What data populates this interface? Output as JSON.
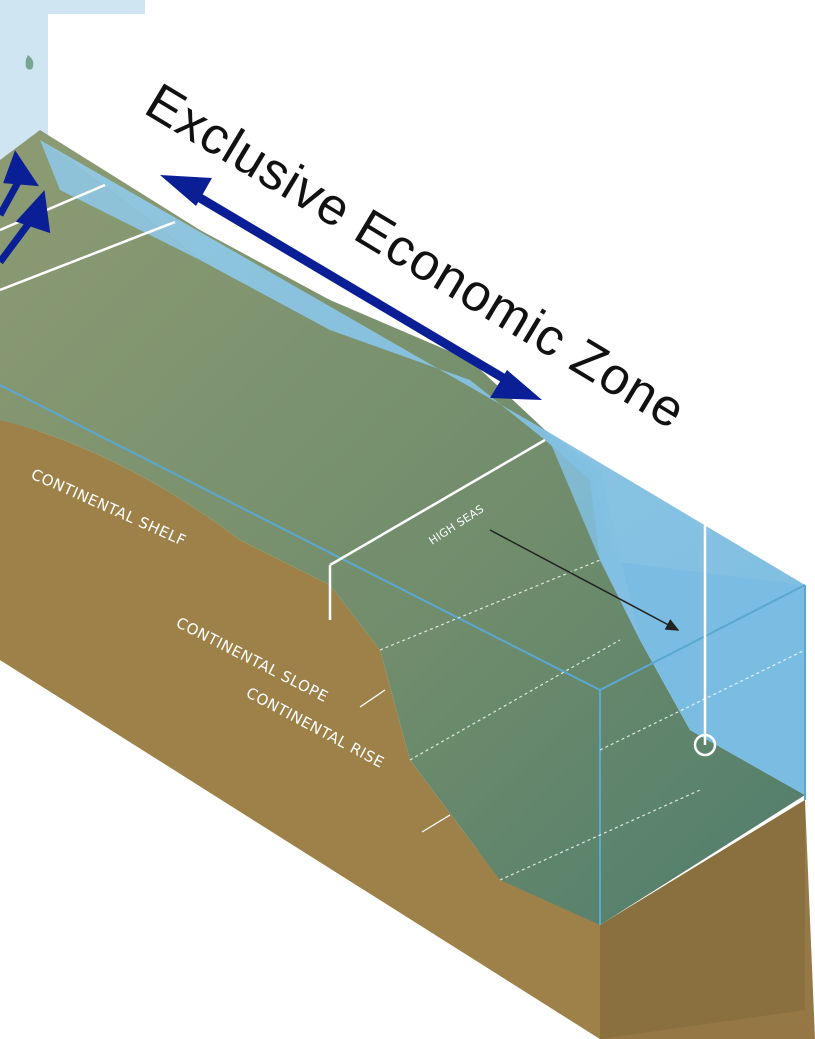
{
  "title": "Exclusive Economic Zone",
  "labels": {
    "continental_shelf": "CONTINENTAL SHELF",
    "continental_slope": "CONTINENTAL SLOPE",
    "continental_rise": "CONTINENTAL RISE",
    "high_seas": "HIGH SEAS"
  },
  "colors": {
    "water": "#86c3e2",
    "water_top": "#7fbfe0",
    "earth": "#9a7e4c",
    "earth_side": "#826a3c",
    "seafloor": "#6b8a6e",
    "arrow": "#0a1f95",
    "map_panel": "#cfe6f2",
    "map_land": "#6aa383"
  }
}
